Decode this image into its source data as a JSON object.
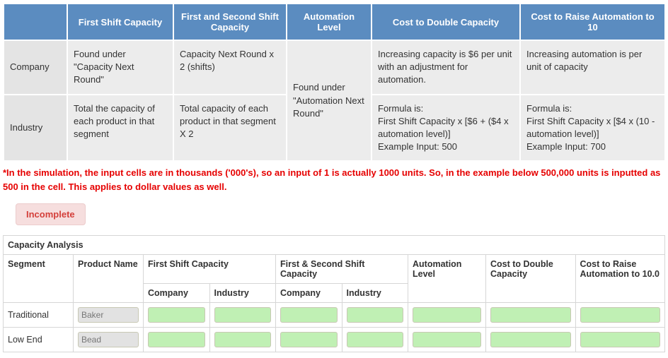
{
  "definitions": {
    "columns": [
      "",
      "First Shift Capacity",
      "First and Second Shift Capacity",
      "Automation Level",
      "Cost to Double Capacity",
      "Cost to Raise Automation to 10"
    ],
    "col_widths": [
      "90px",
      "150px",
      "160px",
      "120px",
      "210px",
      "205px"
    ],
    "rows": [
      {
        "label": "Company",
        "cells": [
          "Found under \"Capacity Next Round\"",
          "Capacity Next Round x 2 (shifts)",
          null,
          "Increasing capacity is $6 per unit with an adjustment for automation.",
          "Increasing automation is per unit of capacity"
        ]
      },
      {
        "label": "Industry",
        "cells": [
          "Total the capacity of each product in that segment",
          "Total capacity of each product in that segment X 2",
          null,
          "Formula is:\nFirst Shift Capacity x [$6 + ($4 x automation level)]\nExample Input: 500",
          "Formula is:\nFirst Shift Capacity x [$4 x (10 - automation level)]\nExample Input: 700"
        ]
      }
    ],
    "automation_merged": "Found under \"Automation Next Round\""
  },
  "note": "*In the simulation, the input cells are in thousands ('000's), so an input of 1 is actually 1000 units. So, in the example below 500,000 units is inputted as 500 in the cell. This applies to dollar values as well.",
  "status_button": "Incomplete",
  "capacity": {
    "title": "Capacity Analysis",
    "headers": {
      "segment": "Segment",
      "product": "Product Name",
      "first_shift": "First Shift Capacity",
      "first_second": "First & Second Shift Capacity",
      "automation": "Automation Level",
      "cost_double": "Cost to Double Capacity",
      "cost_raise": "Cost to Raise Automation to 10.0",
      "company": "Company",
      "industry": "Industry"
    },
    "col_widths": [
      "90px",
      "90px",
      "85px",
      "85px",
      "85px",
      "85px",
      "100px",
      "115px",
      "115px"
    ],
    "rows": [
      {
        "segment": "Traditional",
        "product": "Baker"
      },
      {
        "segment": "Low End",
        "product": "Bead"
      }
    ]
  },
  "colors": {
    "header_bg": "#5b8cc0",
    "alt_row_bg": "#ececec",
    "warn_text": "#e60000",
    "btn_bg": "#f6dede",
    "btn_text": "#d43f3a",
    "green_input": "#c0f0b4",
    "grey_input": "#e2e2e2"
  }
}
